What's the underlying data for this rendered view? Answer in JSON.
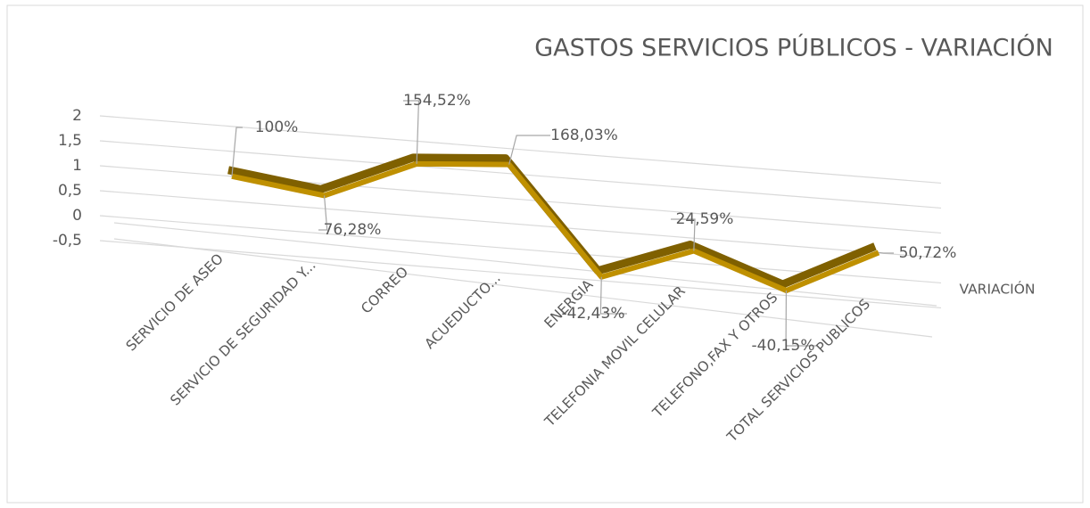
{
  "chart_data": {
    "type": "line",
    "title": "GASTOS SERVICIOS PÚBLICOS - VARIACIÓN",
    "categories": [
      "SERVICIO DE ASEO",
      "SERVICIO DE SEGURIDAD Y...",
      "CORREO",
      "ACUEDUCTO...",
      "ENERGIA",
      "TELEFONIA MOVIL CELULAR",
      "TELEFONO,FAX Y OTROS",
      "TOTAL SERVICIOS PUBLICOS"
    ],
    "series": [
      {
        "name": "VARIACIÓN",
        "color": "#bf9000",
        "values": [
          1,
          0.7628,
          1.5452,
          1.6803,
          -0.4243,
          0.2459,
          -0.4015,
          0.5072
        ],
        "value_labels": [
          "100%",
          "76,28%",
          "154,52%",
          "168,03%",
          "-42,43%",
          "24,59%",
          "-40,15%",
          "50,72%"
        ]
      }
    ],
    "ylim": [
      -0.5,
      2
    ],
    "yticks": [
      {
        "value": -0.5,
        "label": "-0,5"
      },
      0,
      {
        "value": 0.5,
        "label": "0,5"
      },
      1,
      {
        "value": 1.5,
        "label": "1,5"
      },
      2
    ],
    "grid": true
  }
}
